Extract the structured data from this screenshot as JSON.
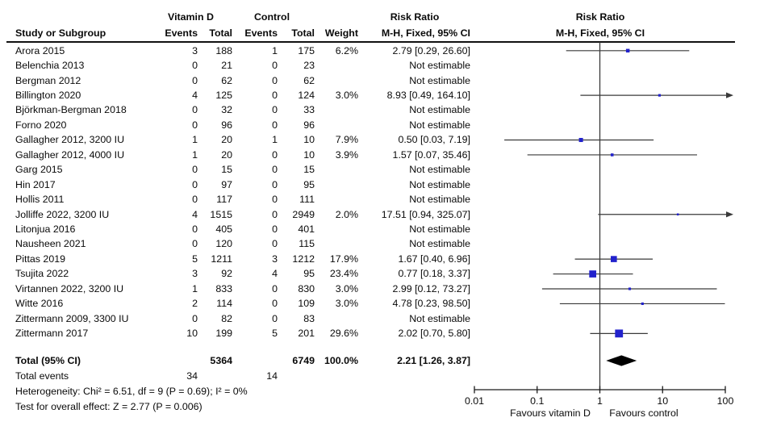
{
  "header": {
    "group_vd": "Vitamin D",
    "group_control": "Control",
    "study": "Study or Subgroup",
    "events": "Events",
    "total": "Total",
    "weight": "Weight",
    "risk_ratio": "Risk Ratio",
    "method": "M-H, Fixed, 95% CI"
  },
  "total_row": {
    "label": "Total (95% CI)",
    "total_vd": "5364",
    "total_control": "6749",
    "weight": "100.0%",
    "rr_text": "2.21 [1.26, 3.87]"
  },
  "total_events": {
    "label": "Total events",
    "vd": "34",
    "control": "14"
  },
  "footer": {
    "heterogeneity": "Heterogeneity: Chi² = 6.51, df = 9 (P = 0.69); I² = 0%",
    "overall_test": "Test for overall effect: Z = 2.77 (P = 0.006)"
  },
  "colors": {
    "marker_blue": "#2222cc",
    "ci_line": "#3a3a3a",
    "diamond": "#000000",
    "axis": "#1a1a1a"
  },
  "chart_data": {
    "type": "forest",
    "scale": "log10",
    "xlim": [
      0.01,
      100
    ],
    "xticks": [
      0.01,
      0.1,
      1,
      10,
      100
    ],
    "xtick_labels": [
      "0.01",
      "0.1",
      "1",
      "10",
      "100"
    ],
    "favours_left": "Favours vitamin D",
    "favours_right": "Favours control",
    "effect_measure": "Risk Ratio",
    "method": "M-H, Fixed, 95% CI",
    "rows": [
      {
        "name": "Arora 2015",
        "e1": "3",
        "t1": "188",
        "e2": "1",
        "t2": "175",
        "weight": "6.2%",
        "rr_text": "2.79 [0.29, 26.60]",
        "estimable": true,
        "rr": 2.79,
        "lo": 0.29,
        "hi": 26.6,
        "w": 6.2
      },
      {
        "name": "Belenchia 2013",
        "e1": "0",
        "t1": "21",
        "e2": "0",
        "t2": "23",
        "weight": "",
        "rr_text": "Not estimable",
        "estimable": false
      },
      {
        "name": "Bergman 2012",
        "e1": "0",
        "t1": "62",
        "e2": "0",
        "t2": "62",
        "weight": "",
        "rr_text": "Not estimable",
        "estimable": false
      },
      {
        "name": "Billington 2020",
        "e1": "4",
        "t1": "125",
        "e2": "0",
        "t2": "124",
        "weight": "3.0%",
        "rr_text": "8.93 [0.49, 164.10]",
        "estimable": true,
        "rr": 8.93,
        "lo": 0.49,
        "hi": 164.1,
        "w": 3.0
      },
      {
        "name": "Björkman-Bergman 2018",
        "e1": "0",
        "t1": "32",
        "e2": "0",
        "t2": "33",
        "weight": "",
        "rr_text": "Not estimable",
        "estimable": false
      },
      {
        "name": "Forno 2020",
        "e1": "0",
        "t1": "96",
        "e2": "0",
        "t2": "96",
        "weight": "",
        "rr_text": "Not estimable",
        "estimable": false
      },
      {
        "name": "Gallagher 2012, 3200 IU",
        "e1": "1",
        "t1": "20",
        "e2": "1",
        "t2": "10",
        "weight": "7.9%",
        "rr_text": "0.50 [0.03, 7.19]",
        "estimable": true,
        "rr": 0.5,
        "lo": 0.03,
        "hi": 7.19,
        "w": 7.9
      },
      {
        "name": "Gallagher 2012, 4000 IU",
        "e1": "1",
        "t1": "20",
        "e2": "0",
        "t2": "10",
        "weight": "3.9%",
        "rr_text": "1.57 [0.07, 35.46]",
        "estimable": true,
        "rr": 1.57,
        "lo": 0.07,
        "hi": 35.46,
        "w": 3.9
      },
      {
        "name": "Garg 2015",
        "e1": "0",
        "t1": "15",
        "e2": "0",
        "t2": "15",
        "weight": "",
        "rr_text": "Not estimable",
        "estimable": false
      },
      {
        "name": "Hin 2017",
        "e1": "0",
        "t1": "97",
        "e2": "0",
        "t2": "95",
        "weight": "",
        "rr_text": "Not estimable",
        "estimable": false
      },
      {
        "name": "Hollis 2011",
        "e1": "0",
        "t1": "117",
        "e2": "0",
        "t2": "111",
        "weight": "",
        "rr_text": "Not estimable",
        "estimable": false
      },
      {
        "name": "Jolliffe 2022, 3200 IU",
        "e1": "4",
        "t1": "1515",
        "e2": "0",
        "t2": "2949",
        "weight": "2.0%",
        "rr_text": "17.51 [0.94, 325.07]",
        "estimable": true,
        "rr": 17.51,
        "lo": 0.94,
        "hi": 325.07,
        "w": 2.0
      },
      {
        "name": "Litonjua 2016",
        "e1": "0",
        "t1": "405",
        "e2": "0",
        "t2": "401",
        "weight": "",
        "rr_text": "Not estimable",
        "estimable": false
      },
      {
        "name": "Nausheen 2021",
        "e1": "0",
        "t1": "120",
        "e2": "0",
        "t2": "115",
        "weight": "",
        "rr_text": "Not estimable",
        "estimable": false
      },
      {
        "name": "Pittas 2019",
        "e1": "5",
        "t1": "1211",
        "e2": "3",
        "t2": "1212",
        "weight": "17.9%",
        "rr_text": "1.67 [0.40, 6.96]",
        "estimable": true,
        "rr": 1.67,
        "lo": 0.4,
        "hi": 6.96,
        "w": 17.9
      },
      {
        "name": "Tsujita 2022",
        "e1": "3",
        "t1": "92",
        "e2": "4",
        "t2": "95",
        "weight": "23.4%",
        "rr_text": "0.77 [0.18, 3.37]",
        "estimable": true,
        "rr": 0.77,
        "lo": 0.18,
        "hi": 3.37,
        "w": 23.4
      },
      {
        "name": "Virtannen 2022, 3200 IU",
        "e1": "1",
        "t1": "833",
        "e2": "0",
        "t2": "830",
        "weight": "3.0%",
        "rr_text": "2.99 [0.12, 73.27]",
        "estimable": true,
        "rr": 2.99,
        "lo": 0.12,
        "hi": 73.27,
        "w": 3.0
      },
      {
        "name": "Witte 2016",
        "e1": "2",
        "t1": "114",
        "e2": "0",
        "t2": "109",
        "weight": "3.0%",
        "rr_text": "4.78 [0.23, 98.50]",
        "estimable": true,
        "rr": 4.78,
        "lo": 0.23,
        "hi": 98.5,
        "w": 3.0
      },
      {
        "name": "Zittermann 2009, 3300 IU",
        "e1": "0",
        "t1": "82",
        "e2": "0",
        "t2": "83",
        "weight": "",
        "rr_text": "Not estimable",
        "estimable": false
      },
      {
        "name": "Zittermann 2017",
        "e1": "10",
        "t1": "199",
        "e2": "5",
        "t2": "201",
        "weight": "29.6%",
        "rr_text": "2.02 [0.70, 5.80]",
        "estimable": true,
        "rr": 2.02,
        "lo": 0.7,
        "hi": 5.8,
        "w": 29.6
      }
    ],
    "total": {
      "label": "Total (95% CI)",
      "rr": 2.21,
      "lo": 1.26,
      "hi": 3.87,
      "rr_text": "2.21 [1.26, 3.87]"
    }
  }
}
